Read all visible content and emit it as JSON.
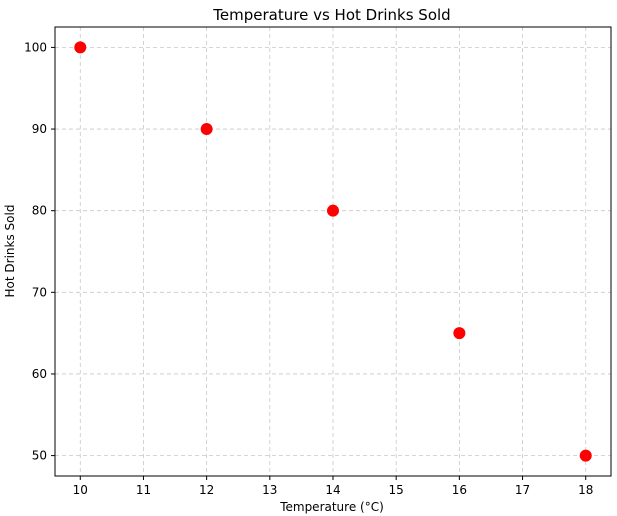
{
  "chart_data": {
    "type": "scatter",
    "title": "Temperature vs Hot Drinks Sold",
    "xlabel": "Temperature (°C)",
    "ylabel": "Hot Drinks Sold",
    "xlim": [
      9.6,
      18.4
    ],
    "ylim": [
      47.5,
      102.5
    ],
    "xticks": [
      10,
      11,
      12,
      13,
      14,
      15,
      16,
      17,
      18
    ],
    "yticks": [
      50,
      60,
      70,
      80,
      90,
      100
    ],
    "grid": true,
    "marker_color": "#ff0000",
    "points": [
      {
        "x": 10,
        "y": 100
      },
      {
        "x": 12,
        "y": 90
      },
      {
        "x": 14,
        "y": 80
      },
      {
        "x": 16,
        "y": 65
      },
      {
        "x": 18,
        "y": 50
      }
    ]
  }
}
